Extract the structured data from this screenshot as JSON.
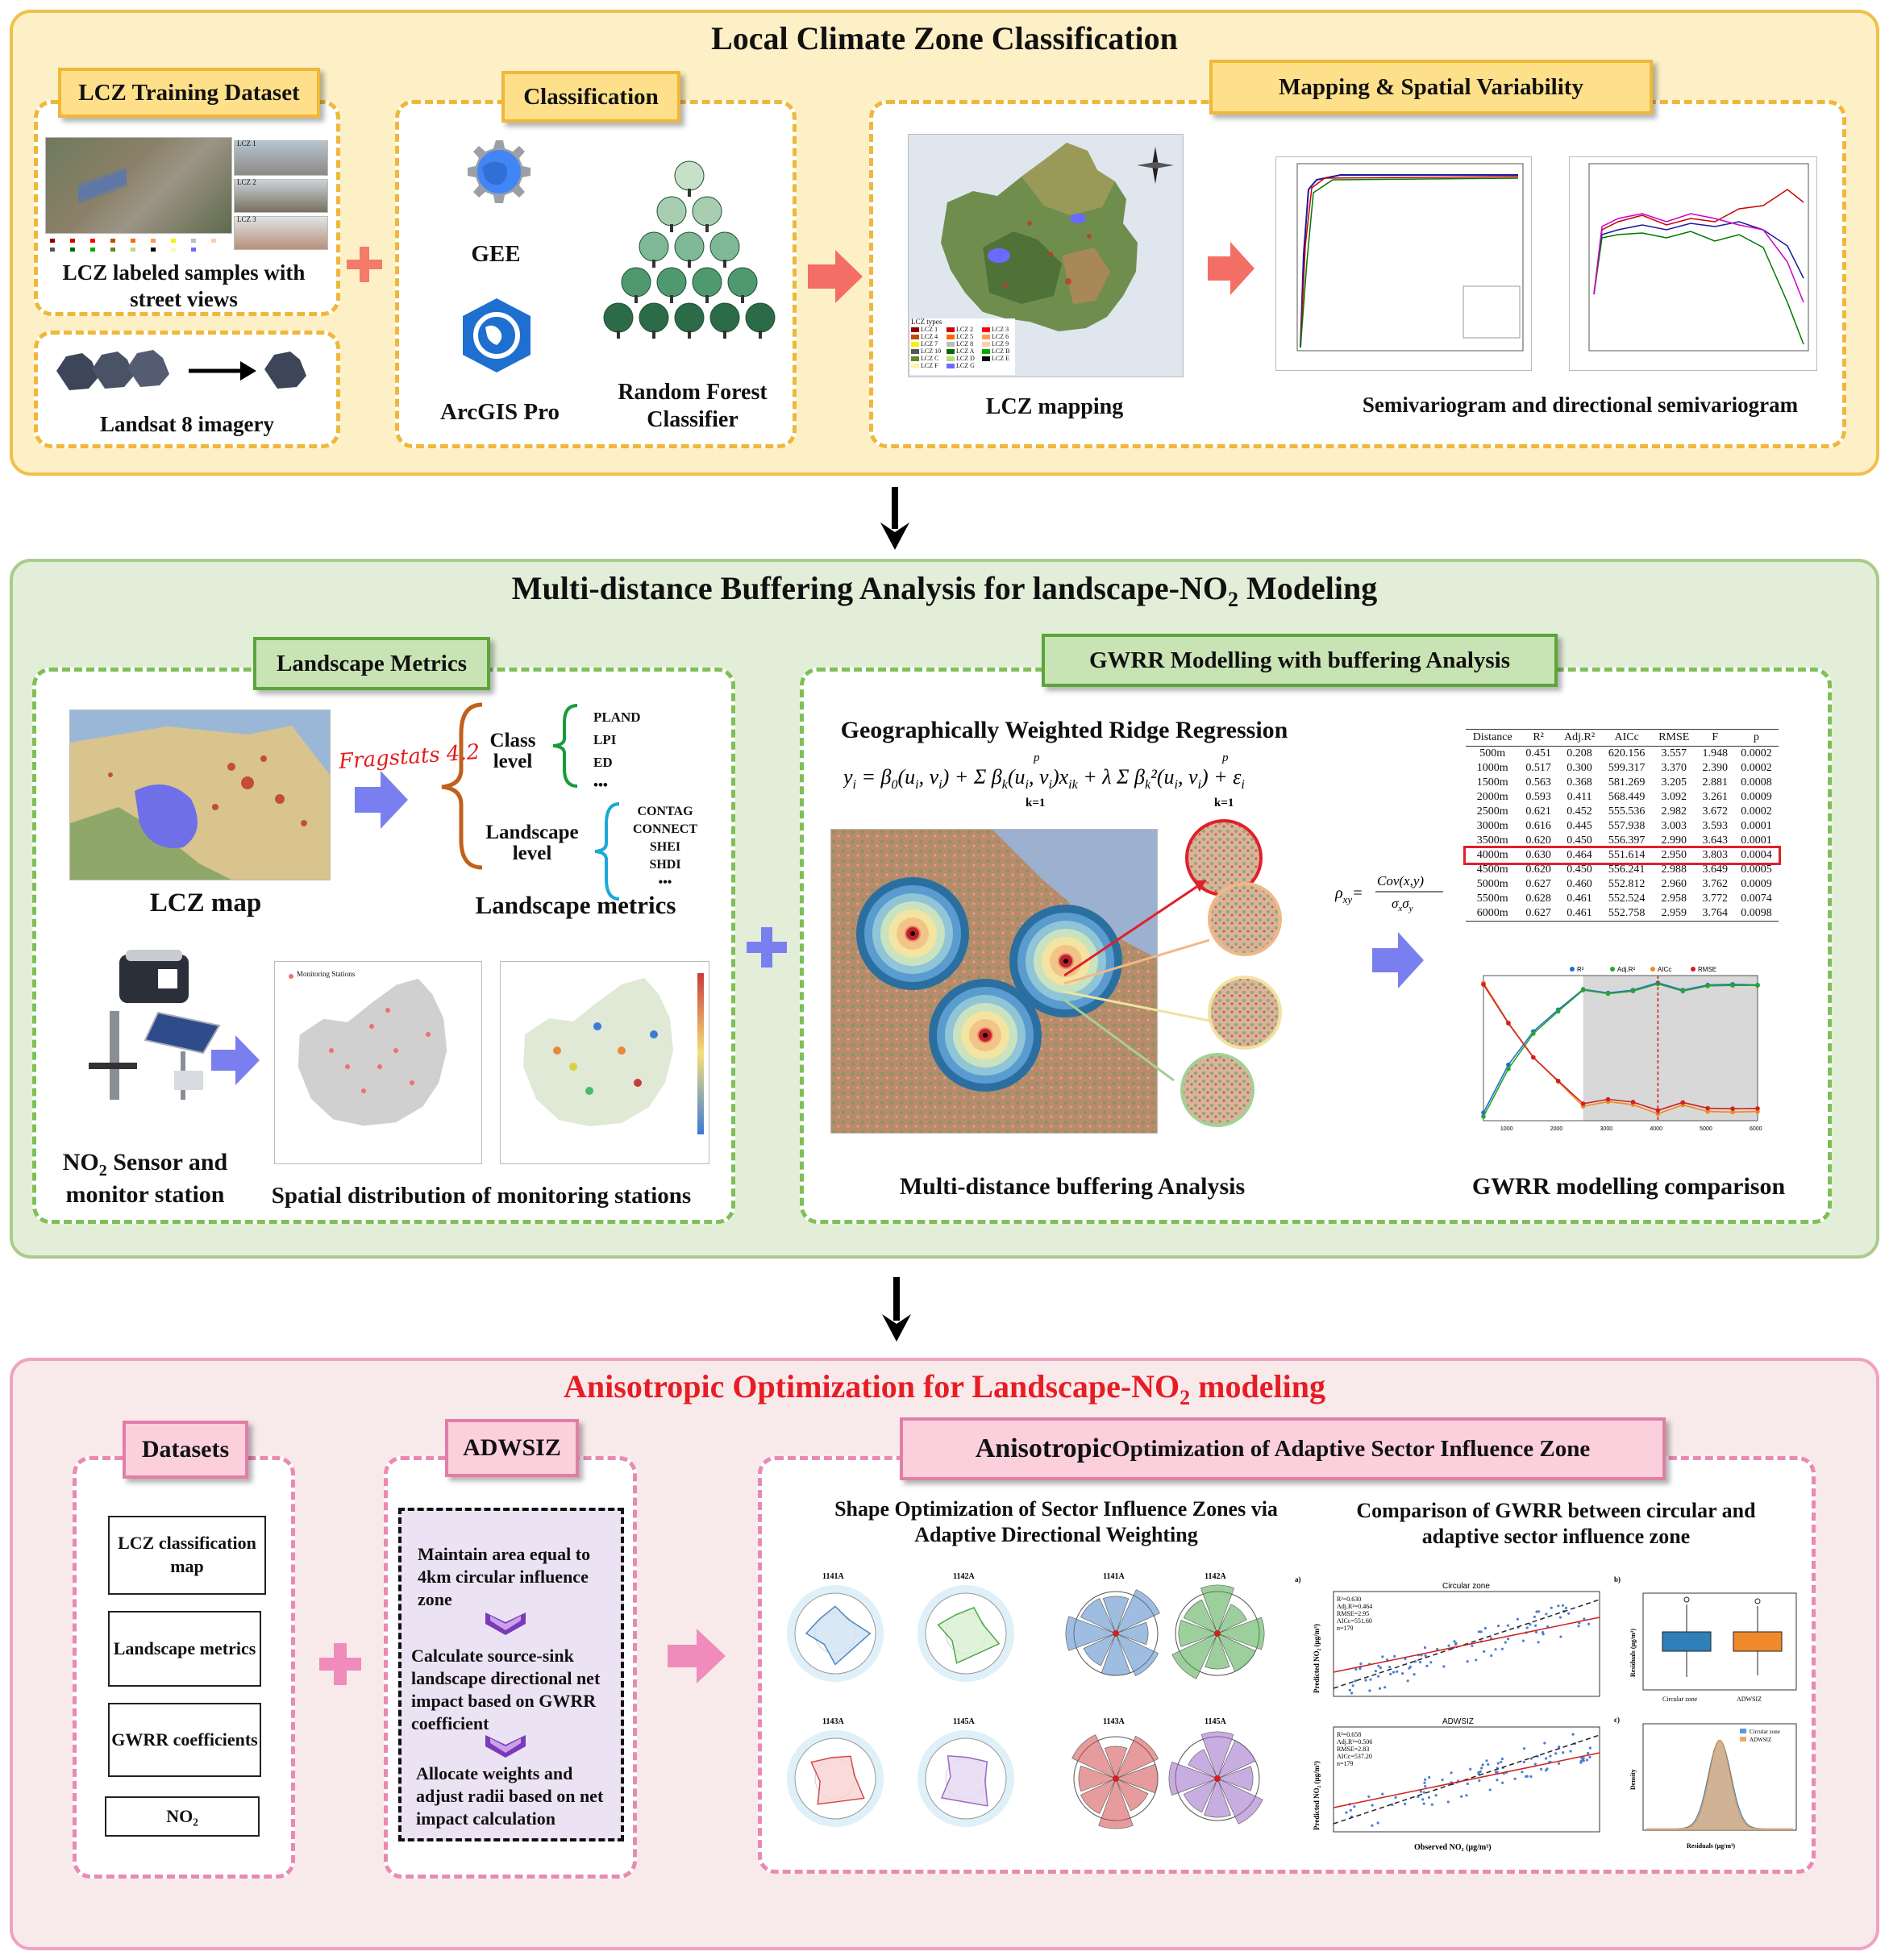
{
  "section1": {
    "title": "Local Climate Zone Classification",
    "tag_training": "LCZ Training Dataset",
    "tag_classification": "Classification",
    "tag_mapping": "Mapping & Spatial Variability",
    "label_samples": "LCZ labeled samples with street views",
    "label_landsat": "Landsat 8 imagery",
    "label_gee": "GEE",
    "label_arcgis": "ArcGIS Pro",
    "label_rf": "Random Forest Classifier",
    "label_lcz_mapping": "LCZ mapping",
    "label_semivariogram": "Semivariogram and directional semivariogram",
    "lcz_types_title": "LCZ types",
    "lcz_types": [
      "LCZ 1",
      "LCZ 2",
      "LCZ 3",
      "LCZ 4",
      "LCZ 5",
      "LCZ 6",
      "LCZ 7",
      "LCZ 8",
      "LCZ 9",
      "LCZ 10",
      "LCZ A",
      "LCZ B",
      "LCZ C",
      "LCZ D",
      "LCZ E",
      "LCZ F",
      "LCZ G"
    ],
    "lcz_colors": [
      "#8c0000",
      "#d10000",
      "#ff0000",
      "#bf4d00",
      "#ff6600",
      "#ff9955",
      "#faee05",
      "#bcbcbc",
      "#ffccaa",
      "#555555",
      "#006a00",
      "#00aa00",
      "#648525",
      "#b9db79",
      "#000000",
      "#fbf7ae",
      "#6a6aff"
    ],
    "street_labels": [
      "LCZ 1",
      "LCZ 2",
      "LCZ 3"
    ]
  },
  "section2": {
    "title": "Multi-distance  Buffering Analysis for landscape-NO",
    "title_sub": "2",
    "title_end": " Modeling",
    "tag_landscape": "Landscape Metrics",
    "tag_gwrr": "GWRR Modelling with buffering Analysis",
    "fragstats": "Fragstats 4.2",
    "class_level": "Class level",
    "class_metrics": [
      "PLAND",
      "LPI",
      "ED",
      "•••"
    ],
    "landscape_level": "Landscape level",
    "landscape_metrics": [
      "CONTAG",
      "CONNECT",
      "SHEI",
      "SHDI",
      "•••"
    ],
    "label_lcz_map": "LCZ map",
    "label_landscape_metrics": "Landscape metrics",
    "label_sensor_a": "NO",
    "label_sensor_sub": "2",
    "label_sensor_b": " Sensor and monitor station",
    "label_spatial": "Spatial distribution of monitoring stations",
    "map_legend": "Monitoring Stations",
    "gwrr_title": "Geographically Weighted Ridge Regression",
    "label_buffer": "Multi-distance buffering Analysis",
    "label_comparison": "GWRR modelling comparison",
    "table_headers": [
      "Distance",
      "R²",
      "Adj.R²",
      "AICc",
      "RMSE",
      "F",
      "p"
    ],
    "table_rows": [
      [
        "500m",
        "0.451",
        "0.208",
        "620.156",
        "3.557",
        "1.948",
        "0.0002"
      ],
      [
        "1000m",
        "0.517",
        "0.300",
        "599.317",
        "3.370",
        "2.390",
        "0.0002"
      ],
      [
        "1500m",
        "0.563",
        "0.368",
        "581.269",
        "3.205",
        "2.881",
        "0.0008"
      ],
      [
        "2000m",
        "0.593",
        "0.411",
        "568.449",
        "3.092",
        "3.261",
        "0.0009"
      ],
      [
        "2500m",
        "0.621",
        "0.452",
        "555.536",
        "2.982",
        "3.672",
        "0.0002"
      ],
      [
        "3000m",
        "0.616",
        "0.445",
        "557.938",
        "3.003",
        "3.593",
        "0.0001"
      ],
      [
        "3500m",
        "0.620",
        "0.450",
        "556.397",
        "2.990",
        "3.643",
        "0.0001"
      ],
      [
        "4000m",
        "0.630",
        "0.464",
        "551.614",
        "2.950",
        "3.803",
        "0.0004"
      ],
      [
        "4500m",
        "0.620",
        "0.450",
        "556.241",
        "2.988",
        "3.649",
        "0.0005"
      ],
      [
        "5000m",
        "0.627",
        "0.460",
        "552.812",
        "2.960",
        "3.762",
        "0.0009"
      ],
      [
        "5500m",
        "0.628",
        "0.461",
        "552.524",
        "2.958",
        "3.772",
        "0.0074"
      ],
      [
        "6000m",
        "0.627",
        "0.461",
        "552.758",
        "2.959",
        "3.764",
        "0.0098"
      ]
    ],
    "highlight_row": 7,
    "chart_legend": [
      "R²",
      "Adj.R²",
      "AICc",
      "RMSE"
    ]
  },
  "section3": {
    "title_a": "Anisotropic Optimization for Landscape-NO",
    "title_sub": "2",
    "title_b": " modeling",
    "tag_datasets": "Datasets",
    "tag_adwsiz": "ADWSIZ",
    "tag_aniso_a": "Anisotropic",
    "tag_aniso_b": " Optimization of Adaptive Sector Influence Zone",
    "datasets": [
      "LCZ classification map",
      "Landscape metrics",
      "GWRR coefficients",
      "NO₂"
    ],
    "steps": [
      "Maintain area equal to 4km circular influence zone",
      "Calculate source-sink landscape directional net impact based on GWRR coefficient",
      "Allocate weights and adjust radii based on net impact calculation"
    ],
    "shape_title": "Shape Optimization of Sector Influence Zones via Adaptive Directional Weighting",
    "compare_title": "Comparison of GWRR between circular and adaptive sector influence zone",
    "radar_labels": [
      "1141A",
      "1142A",
      "1143A",
      "1145A"
    ],
    "sector_labels": [
      "1141A",
      "1142A",
      "1143A",
      "1145A"
    ],
    "scatter_a_title": "Circular zone",
    "scatter_b_title": "ADWSIZ",
    "scatter_a_stats": [
      "R²=0.630",
      "Adj.R²=0.464",
      "RMSE=2.95",
      "AICc=551.60",
      "n=179"
    ],
    "scatter_b_stats": [
      "R²=0.658",
      "Adj.R²=0.506",
      "RMSE=2.83",
      "AICc=537.20",
      "n=179"
    ],
    "scatter_xlabel": "Observed NO₂ (μg/m³)",
    "scatter_ylabel": "Predicted NO₂ (μg/m³)",
    "residual_ylabel": "Residuals (μg/m³)",
    "density_ylabel": "Density",
    "density_xlabel": "Residuals (μg/m³)",
    "box_labels": [
      "Circular zone",
      "ADWSIZ"
    ],
    "density_legend": [
      "Circular zone",
      "ADWSIZ"
    ],
    "panel_letters": [
      "a)",
      "b)",
      "c)"
    ]
  }
}
